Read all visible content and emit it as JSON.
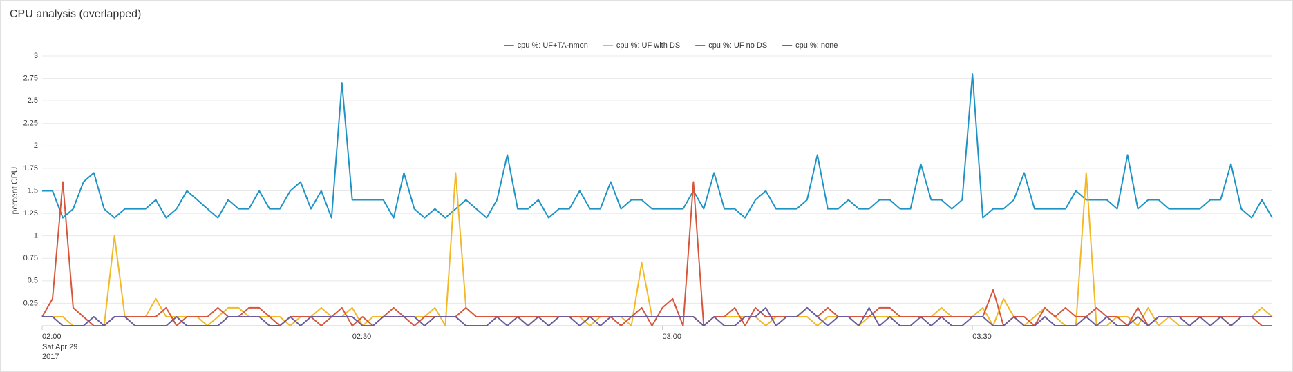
{
  "chart_data": {
    "type": "line",
    "title": "CPU analysis (overlapped)",
    "ylabel": "percent CPU",
    "legend": "top",
    "grid": true,
    "ylim": [
      0,
      3
    ],
    "yticks": [
      0.25,
      0.5,
      0.75,
      1,
      1.25,
      1.5,
      1.75,
      2,
      2.25,
      2.5,
      2.75,
      3
    ],
    "xlim": [
      "02:00",
      "03:59"
    ],
    "xticks": [
      "02:00",
      "02:30",
      "03:00",
      "03:30"
    ],
    "xtick_date": "Sat Apr 29",
    "xtick_year": "2017",
    "x": [
      "02:00",
      "02:01",
      "02:02",
      "02:03",
      "02:04",
      "02:05",
      "02:06",
      "02:07",
      "02:08",
      "02:09",
      "02:10",
      "02:11",
      "02:12",
      "02:13",
      "02:14",
      "02:15",
      "02:16",
      "02:17",
      "02:18",
      "02:19",
      "02:20",
      "02:21",
      "02:22",
      "02:23",
      "02:24",
      "02:25",
      "02:26",
      "02:27",
      "02:28",
      "02:29",
      "02:30",
      "02:31",
      "02:32",
      "02:33",
      "02:34",
      "02:35",
      "02:36",
      "02:37",
      "02:38",
      "02:39",
      "02:40",
      "02:41",
      "02:42",
      "02:43",
      "02:44",
      "02:45",
      "02:46",
      "02:47",
      "02:48",
      "02:49",
      "02:50",
      "02:51",
      "02:52",
      "02:53",
      "02:54",
      "02:55",
      "02:56",
      "02:57",
      "02:58",
      "02:59",
      "03:00",
      "03:01",
      "03:02",
      "03:03",
      "03:04",
      "03:05",
      "03:06",
      "03:07",
      "03:08",
      "03:09",
      "03:10",
      "03:11",
      "03:12",
      "03:13",
      "03:14",
      "03:15",
      "03:16",
      "03:17",
      "03:18",
      "03:19",
      "03:20",
      "03:21",
      "03:22",
      "03:23",
      "03:24",
      "03:25",
      "03:26",
      "03:27",
      "03:28",
      "03:29",
      "03:30",
      "03:31",
      "03:32",
      "03:33",
      "03:34",
      "03:35",
      "03:36",
      "03:37",
      "03:38",
      "03:39",
      "03:40",
      "03:41",
      "03:42",
      "03:43",
      "03:44",
      "03:45",
      "03:46",
      "03:47",
      "03:48",
      "03:49",
      "03:50",
      "03:51",
      "03:52",
      "03:53",
      "03:54",
      "03:55",
      "03:56",
      "03:57",
      "03:58",
      "03:59"
    ],
    "series": [
      {
        "name": "cpu %: UF+TA-nmon",
        "color": "#1e93c6",
        "values": [
          1.5,
          1.5,
          1.2,
          1.3,
          1.6,
          1.7,
          1.3,
          1.2,
          1.3,
          1.3,
          1.3,
          1.4,
          1.2,
          1.3,
          1.5,
          1.4,
          1.3,
          1.2,
          1.4,
          1.3,
          1.3,
          1.5,
          1.3,
          1.3,
          1.5,
          1.6,
          1.3,
          1.5,
          1.2,
          2.7,
          1.4,
          1.4,
          1.4,
          1.4,
          1.2,
          1.7,
          1.3,
          1.2,
          1.3,
          1.2,
          1.3,
          1.4,
          1.3,
          1.2,
          1.4,
          1.9,
          1.3,
          1.3,
          1.4,
          1.2,
          1.3,
          1.3,
          1.5,
          1.3,
          1.3,
          1.6,
          1.3,
          1.4,
          1.4,
          1.3,
          1.3,
          1.3,
          1.3,
          1.5,
          1.3,
          1.7,
          1.3,
          1.3,
          1.2,
          1.4,
          1.5,
          1.3,
          1.3,
          1.3,
          1.4,
          1.9,
          1.3,
          1.3,
          1.4,
          1.3,
          1.3,
          1.4,
          1.4,
          1.3,
          1.3,
          1.8,
          1.4,
          1.4,
          1.3,
          1.4,
          2.8,
          1.2,
          1.3,
          1.3,
          1.4,
          1.7,
          1.3,
          1.3,
          1.3,
          1.3,
          1.5,
          1.4,
          1.4,
          1.4,
          1.3,
          1.9,
          1.3,
          1.4,
          1.4,
          1.3,
          1.3,
          1.3,
          1.3,
          1.4,
          1.4,
          1.8,
          1.3,
          1.2,
          1.4,
          1.2
        ]
      },
      {
        "name": "cpu %: UF with DS",
        "color": "#f2b827",
        "values": [
          0.1,
          0.1,
          0.1,
          0,
          0,
          0,
          0,
          1.0,
          0.1,
          0.1,
          0.1,
          0.3,
          0.1,
          0.1,
          0.1,
          0.1,
          0,
          0.1,
          0.2,
          0.2,
          0.1,
          0.1,
          0.1,
          0.1,
          0,
          0.1,
          0.1,
          0.2,
          0.1,
          0.1,
          0.2,
          0,
          0.1,
          0.1,
          0.1,
          0.1,
          0.1,
          0.1,
          0.2,
          0,
          1.7,
          0.2,
          0.1,
          0.1,
          0.1,
          0.1,
          0.1,
          0,
          0.1,
          0.1,
          0.1,
          0.1,
          0.1,
          0,
          0.1,
          0.1,
          0.1,
          0,
          0.7,
          0.1,
          0.1,
          0.1,
          0.1,
          0.1,
          0,
          0.1,
          0.1,
          0.1,
          0.1,
          0.1,
          0,
          0.1,
          0.1,
          0.1,
          0.1,
          0,
          0.1,
          0.1,
          0.1,
          0,
          0.1,
          0.1,
          0.1,
          0.1,
          0.1,
          0.1,
          0.1,
          0.2,
          0.1,
          0.1,
          0.1,
          0.2,
          0,
          0.3,
          0.1,
          0,
          0.1,
          0.2,
          0.1,
          0,
          0,
          1.7,
          0,
          0,
          0.1,
          0.1,
          0,
          0.2,
          0,
          0.1,
          0,
          0,
          0.1,
          0.1,
          0.1,
          0,
          0.1,
          0.1,
          0.2,
          0.1
        ]
      },
      {
        "name": "cpu %: UF no DS",
        "color": "#d6563c",
        "values": [
          0.1,
          0.3,
          1.6,
          0.2,
          0.1,
          0,
          0,
          0.1,
          0.1,
          0.1,
          0.1,
          0.1,
          0.2,
          0,
          0.1,
          0.1,
          0.1,
          0.2,
          0.1,
          0.1,
          0.2,
          0.2,
          0.1,
          0,
          0.1,
          0.1,
          0.1,
          0,
          0.1,
          0.2,
          0,
          0.1,
          0,
          0.1,
          0.2,
          0.1,
          0,
          0.1,
          0.1,
          0.1,
          0.1,
          0.2,
          0.1,
          0.1,
          0.1,
          0.1,
          0.1,
          0.1,
          0.1,
          0.1,
          0.1,
          0.1,
          0.1,
          0.1,
          0.1,
          0.1,
          0,
          0.1,
          0.2,
          0,
          0.2,
          0.3,
          0,
          1.6,
          0,
          0.1,
          0.1,
          0.2,
          0,
          0.2,
          0.1,
          0.1,
          0.1,
          0.1,
          0.2,
          0.1,
          0.2,
          0.1,
          0.1,
          0.1,
          0.1,
          0.2,
          0.2,
          0.1,
          0.1,
          0.1,
          0.1,
          0.1,
          0.1,
          0.1,
          0.1,
          0.1,
          0.4,
          0,
          0.1,
          0.1,
          0,
          0.2,
          0.1,
          0.2,
          0.1,
          0.1,
          0.2,
          0.1,
          0.1,
          0,
          0.2,
          0,
          0.1,
          0.1,
          0.1,
          0.1,
          0.1,
          0.1,
          0.1,
          0.1,
          0.1,
          0.1,
          0,
          0
        ]
      },
      {
        "name": "cpu %: none",
        "color": "#6a5c9e",
        "values": [
          0.1,
          0.1,
          0,
          0,
          0,
          0.1,
          0,
          0.1,
          0.1,
          0,
          0,
          0,
          0,
          0.1,
          0,
          0,
          0,
          0,
          0.1,
          0.1,
          0.1,
          0.1,
          0,
          0,
          0.1,
          0,
          0.1,
          0.1,
          0.1,
          0.1,
          0.1,
          0,
          0,
          0.1,
          0.1,
          0.1,
          0.1,
          0,
          0.1,
          0.1,
          0.1,
          0,
          0,
          0,
          0.1,
          0,
          0.1,
          0,
          0.1,
          0,
          0.1,
          0.1,
          0,
          0.1,
          0,
          0.1,
          0.1,
          0.1,
          0.1,
          0.1,
          0.1,
          0.1,
          0.1,
          0.1,
          0,
          0.1,
          0,
          0,
          0.1,
          0.1,
          0.2,
          0,
          0.1,
          0.1,
          0.2,
          0.1,
          0,
          0.1,
          0.1,
          0,
          0.2,
          0,
          0.1,
          0,
          0,
          0.1,
          0,
          0.1,
          0,
          0,
          0.1,
          0.1,
          0,
          0,
          0.1,
          0,
          0,
          0.1,
          0,
          0,
          0,
          0.1,
          0,
          0.1,
          0,
          0,
          0.1,
          0,
          0.1,
          0.1,
          0.1,
          0,
          0.1,
          0,
          0.1,
          0,
          0.1,
          0.1,
          0.1,
          0.1
        ]
      }
    ]
  }
}
